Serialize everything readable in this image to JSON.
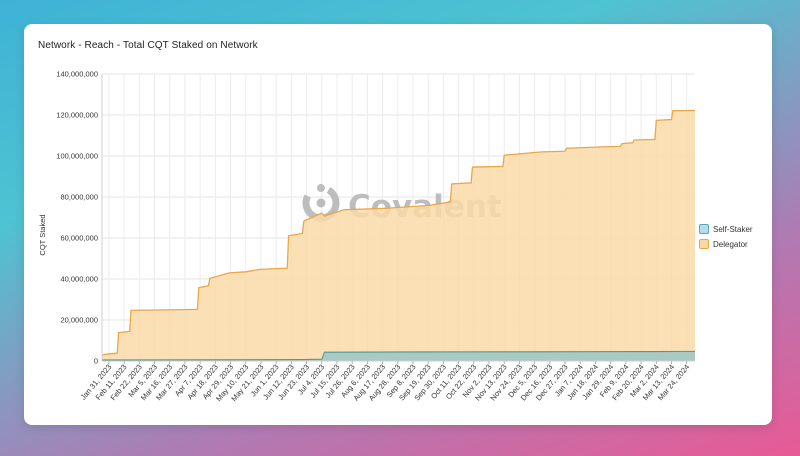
{
  "card": {
    "title": "Network - Reach - Total CQT Staked on Network"
  },
  "watermark": {
    "text": "Covalent",
    "icon": "covalent-logo-icon"
  },
  "chart_data": {
    "type": "area",
    "stacked": true,
    "ylabel": "CQT Staked",
    "xlabel": "",
    "ylim": [
      0,
      140000000
    ],
    "yticks": [
      "0",
      "20,000,000",
      "40,000,000",
      "60,000,000",
      "80,000,000",
      "100,000,000",
      "120,000,000",
      "140,000,000"
    ],
    "grid": true,
    "legend_position": "right",
    "x_tick_labels": [
      "Jan 31, 2023",
      "Feb 11, 2023",
      "Feb 22, 2023",
      "Mar 5, 2023",
      "Mar 16, 2023",
      "Mar 27, 2023",
      "Apr 7, 2023",
      "Apr 18, 2023",
      "Apr 29, 2023",
      "May 10, 2023",
      "May 21, 2023",
      "Jun 1, 2023",
      "Jun 12, 2023",
      "Jun 23, 2023",
      "Jul 4, 2023",
      "Jul 15, 2023",
      "Jul 26, 2023",
      "Aug 6, 2023",
      "Aug 17, 2023",
      "Aug 28, 2023",
      "Sep 8, 2023",
      "Sep 19, 2023",
      "Sep 30, 2023",
      "Oct 11, 2023",
      "Oct 22, 2023",
      "Nov 2, 2023",
      "Nov 13, 2023",
      "Nov 24, 2023",
      "Dec 5, 2023",
      "Dec 16, 2023",
      "Dec 27, 2023",
      "Jan 7, 2024",
      "Jan 18, 2024",
      "Jan 29, 2024",
      "Feb 9, 2024",
      "Feb 20, 2024",
      "Mar 2, 2024",
      "Mar 13, 2024",
      "Mar 24, 2024"
    ],
    "series": [
      {
        "name": "Self-Staker",
        "fill": "#a9c9c5",
        "stroke": "#4e9a96",
        "legend_fill": "#b3dde9",
        "legend_stroke": "#5aa4bc",
        "values": [
          [
            "2023-01-26",
            500000
          ],
          [
            "2023-06-20",
            700000
          ],
          [
            "2023-07-04",
            900000
          ],
          [
            "2023-07-06",
            4300000
          ],
          [
            "2023-09-01",
            4400000
          ],
          [
            "2023-12-01",
            4500000
          ],
          [
            "2024-03-01",
            4600000
          ],
          [
            "2024-03-30",
            4700000
          ]
        ]
      },
      {
        "name": "Delegator",
        "fill": "#fad9a8",
        "stroke": "#e8a84a",
        "values": [
          [
            "2023-01-26",
            2500000
          ],
          [
            "2023-01-31",
            3000000
          ],
          [
            "2023-02-06",
            3300000
          ],
          [
            "2023-02-07",
            13300000
          ],
          [
            "2023-02-15",
            14000000
          ],
          [
            "2023-02-16",
            24200000
          ],
          [
            "2023-04-05",
            24700000
          ],
          [
            "2023-04-06",
            35300000
          ],
          [
            "2023-04-13",
            36200000
          ],
          [
            "2023-04-14",
            39800000
          ],
          [
            "2023-04-28",
            42500000
          ],
          [
            "2023-05-10",
            43000000
          ],
          [
            "2023-05-20",
            44200000
          ],
          [
            "2023-06-09",
            44800000
          ],
          [
            "2023-06-10",
            60600000
          ],
          [
            "2023-06-20",
            61500000
          ],
          [
            "2023-06-21",
            67500000
          ],
          [
            "2023-07-04",
            71300000
          ],
          [
            "2023-07-06",
            66400000
          ],
          [
            "2023-07-20",
            69500000
          ],
          [
            "2023-08-20",
            70200000
          ],
          [
            "2023-09-20",
            71500000
          ],
          [
            "2023-10-05",
            73200000
          ],
          [
            "2023-10-06",
            82000000
          ],
          [
            "2023-10-20",
            82500000
          ],
          [
            "2023-10-21",
            90200000
          ],
          [
            "2023-11-12",
            90500000
          ],
          [
            "2023-11-13",
            96000000
          ],
          [
            "2023-11-25",
            96700000
          ],
          [
            "2023-12-10",
            97500000
          ],
          [
            "2023-12-27",
            97800000
          ],
          [
            "2023-12-28",
            99300000
          ],
          [
            "2024-01-25",
            100000000
          ],
          [
            "2024-02-05",
            100200000
          ],
          [
            "2024-02-06",
            101500000
          ],
          [
            "2024-02-14",
            102000000
          ],
          [
            "2024-02-15",
            103300000
          ],
          [
            "2024-03-01",
            103500000
          ],
          [
            "2024-03-02",
            112800000
          ],
          [
            "2024-03-13",
            113200000
          ],
          [
            "2024-03-14",
            117500000
          ],
          [
            "2024-03-30",
            117500000
          ]
        ]
      }
    ]
  }
}
